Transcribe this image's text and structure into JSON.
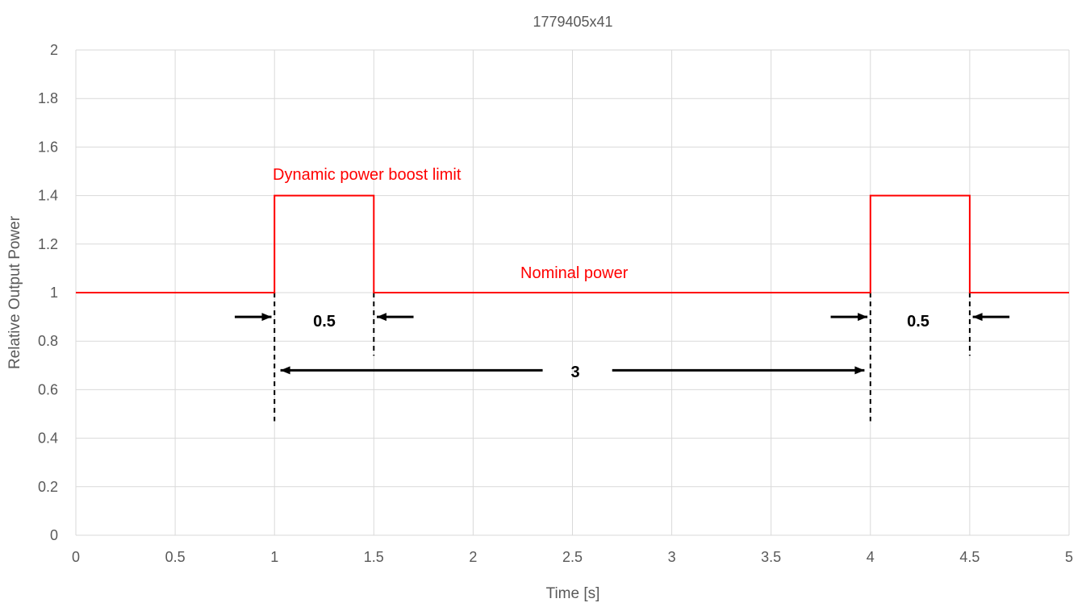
{
  "chart_data": {
    "type": "line",
    "title": "1779405x41",
    "xlabel": "Time [s]",
    "ylabel": "Relative Output Power",
    "xlim": [
      0,
      5
    ],
    "ylim": [
      0,
      2
    ],
    "x_ticks": [
      "0",
      "0.5",
      "1",
      "1.5",
      "2",
      "2.5",
      "3",
      "3.5",
      "4",
      "4.5",
      "5"
    ],
    "y_ticks": [
      "0",
      "0.2",
      "0.4",
      "0.6",
      "0.8",
      "1",
      "1.2",
      "1.4",
      "1.6",
      "1.8",
      "2"
    ],
    "grid": true,
    "line_color": "#ff0000",
    "series": [
      {
        "x": [
          0,
          1,
          1,
          1.5,
          1.5,
          4,
          4,
          4.5,
          4.5,
          5
        ],
        "y": [
          1,
          1,
          1.4,
          1.4,
          1,
          1,
          1.4,
          1.4,
          1,
          1
        ]
      }
    ],
    "annotations": {
      "boost_label": "Dynamic power boost limit",
      "nominal_label": "Nominal power",
      "pulse_width_1": "0.5",
      "pulse_width_2": "0.5",
      "period": "3"
    }
  }
}
